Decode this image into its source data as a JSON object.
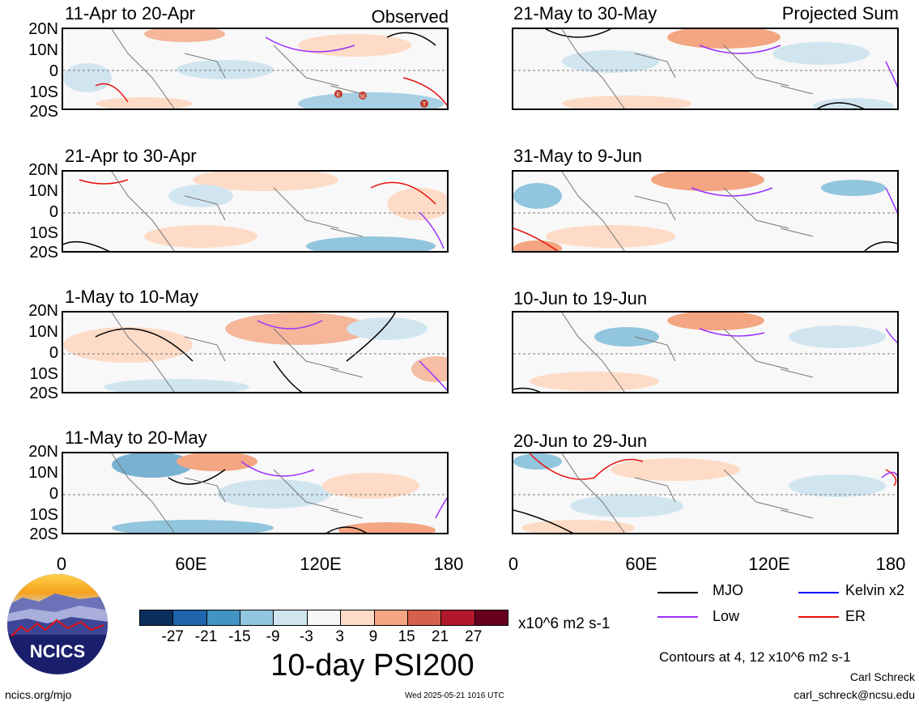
{
  "panels": [
    {
      "title": "11-Apr to 20-Apr",
      "tag": "Observed"
    },
    {
      "title": "21-Apr to 30-Apr",
      "tag": ""
    },
    {
      "title": "1-May to 10-May",
      "tag": ""
    },
    {
      "title": "11-May to 20-May",
      "tag": ""
    },
    {
      "title": "21-May to 30-May",
      "tag": "Projected Sum"
    },
    {
      "title": "31-May to 9-Jun",
      "tag": ""
    },
    {
      "title": "10-Jun to 19-Jun",
      "tag": ""
    },
    {
      "title": "20-Jun to 29-Jun",
      "tag": ""
    }
  ],
  "lat_labels": [
    "20N",
    "10N",
    "0",
    "10S",
    "20S"
  ],
  "lon_labels": [
    "0",
    "60E",
    "120E",
    "180"
  ],
  "storm_markers": [
    "E",
    "SE",
    "T"
  ],
  "colorbar": {
    "colors": [
      "#0b2f5c",
      "#1f64ad",
      "#4393c3",
      "#92c5de",
      "#d1e5f0",
      "#f7f7f7",
      "#fddbc7",
      "#f4a582",
      "#d6604d",
      "#b2182b",
      "#67001f"
    ],
    "ticks": [
      "-27",
      "-21",
      "-15",
      "-9",
      "-3",
      "3",
      "9",
      "15",
      "21",
      "27"
    ],
    "units": "x10^6 m2 s-1"
  },
  "main_title": "10-day PSI200",
  "legend": [
    {
      "label": "MJO",
      "color": "#000000"
    },
    {
      "label": "Kelvin x2",
      "color": "#0000ff"
    },
    {
      "label": "Low",
      "color": "#9b30ff"
    },
    {
      "label": "ER",
      "color": "#e8110f"
    }
  ],
  "contours_note": "Contours at 4, 12 x10^6 m2 s-1",
  "author": "Carl Schreck",
  "email": "carl_schreck@ncsu.edu",
  "website": "ncics.org/mjo",
  "timestamp": "Wed 2025-05-21 1016 UTC",
  "logo_text": "NCICS"
}
